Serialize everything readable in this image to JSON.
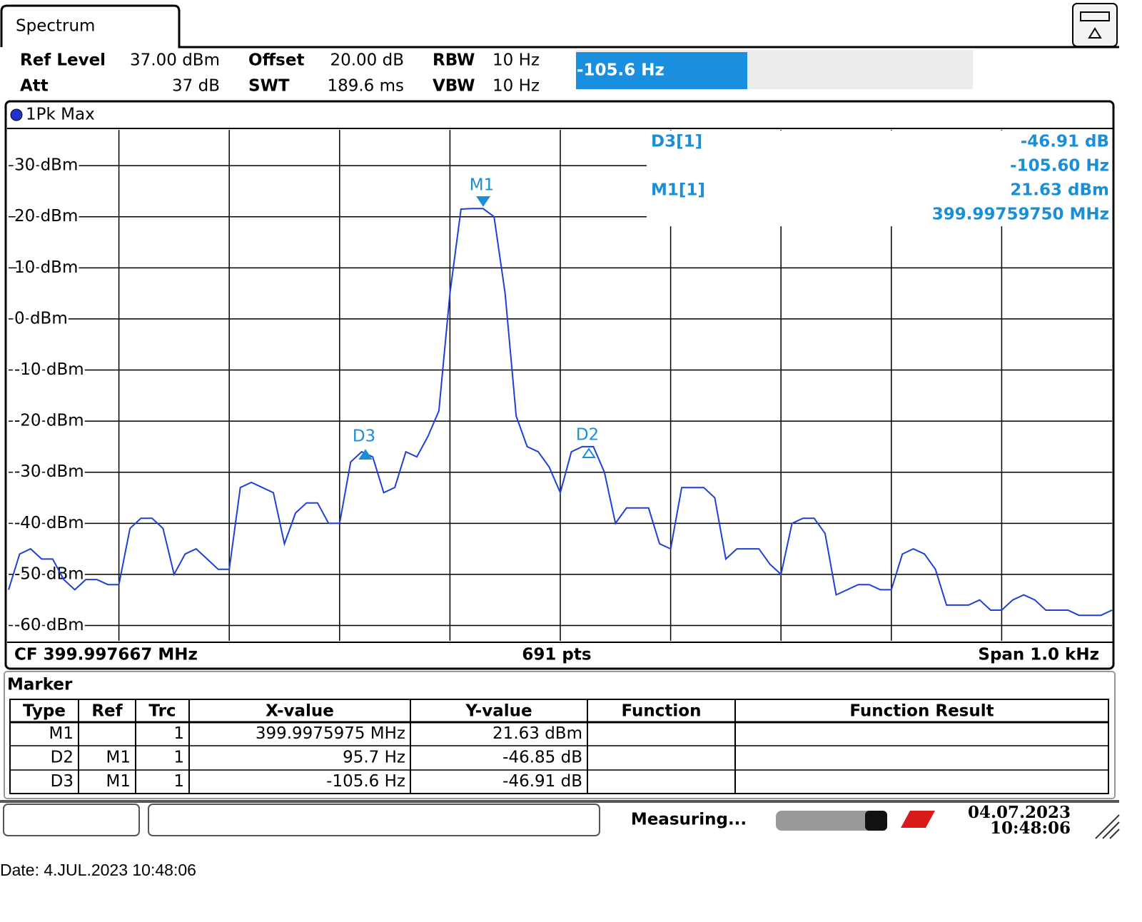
{
  "tab": "Spectrum",
  "settings": [
    {
      "label": "Ref Level",
      "value": "37.00 dBm"
    },
    {
      "label": "Att",
      "value": "37 dB"
    },
    {
      "label": "Offset",
      "value": "20.00 dB"
    },
    {
      "label": "SWT",
      "value": "189.6 ms"
    },
    {
      "label": "RBW",
      "value": "10 Hz"
    },
    {
      "label": "VBW",
      "value": "10 Hz"
    }
  ],
  "highlight": "-105.6 Hz",
  "chart_data": {
    "type": "line",
    "series": [
      {
        "name": "1Pk Max",
        "color": "#1f3fd6",
        "values": [
          -53,
          -46,
          -45,
          -47,
          -47,
          -51,
          -53,
          -51,
          -51,
          -52,
          -52,
          -41,
          -39,
          -39,
          -41,
          -50,
          -46,
          -45,
          -47,
          -49,
          -49,
          -33,
          -32,
          -33,
          -34,
          -44,
          -38,
          -36,
          -36,
          -40,
          -40,
          -28,
          -26,
          -27,
          -34,
          -33,
          -26,
          -27,
          -23,
          -18,
          5,
          21.5,
          21.6,
          21.6,
          20,
          5,
          -19,
          -25,
          -26,
          -29,
          -34,
          -26,
          -25,
          -25,
          -30,
          -40,
          -37,
          -37,
          -37,
          -44,
          -45,
          -33,
          -33,
          -33,
          -35,
          -47,
          -45,
          -45,
          -45,
          -48,
          -50,
          -40,
          -39,
          -39,
          -42,
          -54,
          -53,
          -52,
          -52,
          -53,
          -53,
          -46,
          -45,
          -46,
          -49,
          -56,
          -56,
          -56,
          -55,
          -57,
          -57,
          -55,
          -54,
          -55,
          -57,
          -57,
          -57,
          -58,
          -58,
          -58,
          -57
        ]
      }
    ],
    "ylim": [
      -63,
      37
    ],
    "yticks": [
      {
        "value": 30,
        "label": "30 dBm"
      },
      {
        "value": 20,
        "label": "20 dBm"
      },
      {
        "value": 10,
        "label": "10 dBm"
      },
      {
        "value": 0,
        "label": "0 dBm"
      },
      {
        "value": -10,
        "label": "-10 dBm"
      },
      {
        "value": -20,
        "label": "-20 dBm"
      },
      {
        "value": -30,
        "label": "-30 dBm"
      },
      {
        "value": -40,
        "label": "-40 dBm"
      },
      {
        "value": -50,
        "label": "-50 dBm"
      },
      {
        "value": -60,
        "label": "-60 dBm"
      }
    ],
    "grid": true,
    "markers": [
      {
        "label": "M1"
      },
      {
        "label": "D3"
      },
      {
        "label": "D2"
      }
    ],
    "marker_info": [
      {
        "name": "D3[1]",
        "lines": [
          "-46.91 dB",
          "-105.60 Hz"
        ]
      },
      {
        "name": "M1[1]",
        "lines": [
          "21.63 dBm",
          "399.99759750 MHz"
        ]
      }
    ]
  },
  "footer": {
    "cf": "CF 399.997667 MHz",
    "points": "691 pts",
    "span": "Span 1.0 kHz"
  },
  "marker_table": {
    "title": "Marker",
    "columns": [
      "Type",
      "Ref",
      "Trc",
      "X-value",
      "Y-value",
      "Function",
      "Function Result"
    ],
    "rows": [
      {
        "type": "M1",
        "trc": "1",
        "x": "399.9975975 MHz",
        "y": "21.63 dBm"
      },
      {
        "type": "D2",
        "ref": "M1",
        "trc": "1",
        "x": "95.7 Hz",
        "y": "-46.85 dB"
      },
      {
        "type": "D3",
        "ref": "M1",
        "trc": "1",
        "x": "-105.6 Hz",
        "y": "-46.91 dB"
      }
    ]
  },
  "status": {
    "text": "Measuring...",
    "date": "04.07.2023",
    "time": "10:48:06"
  },
  "date_line": "Date: 4.JUL.2023  10:48:06"
}
